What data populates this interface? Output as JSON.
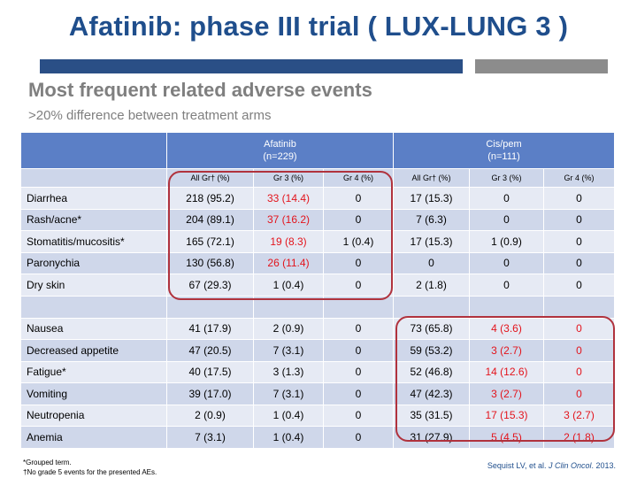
{
  "slide": {
    "title": "Afatinib: phase III trial ( LUX-LUNG 3 )",
    "subtitle": "Most frequent related adverse events",
    "subnote": ">20% difference between treatment arms"
  },
  "colors": {
    "title": "#1f4e8c",
    "header": "#5b7fc6",
    "row_light": "#e6eaf4",
    "row_dark": "#cfd7ea",
    "highlight_text": "#e3141c",
    "outline": "#b0323d"
  },
  "table": {
    "arms": [
      {
        "name": "Afatinib",
        "n": "(n=229)"
      },
      {
        "name": "Cis/pem",
        "n": "(n=111)"
      }
    ],
    "columns": [
      "All Gr† (%)",
      "Gr 3 (%)",
      "Gr 4 (%)",
      "All Gr† (%)",
      "Gr 3 (%)",
      "Gr 4 (%)"
    ],
    "group1": [
      {
        "name": "Diarrhea",
        "cells": [
          "218 (95.2)",
          "33 (14.4)",
          "0",
          "17 (15.3)",
          "0",
          "0"
        ],
        "red": [
          false,
          true,
          false,
          false,
          false,
          false
        ]
      },
      {
        "name": "Rash/acne*",
        "cells": [
          "204 (89.1)",
          "37 (16.2)",
          "0",
          "7 (6.3)",
          "0",
          "0"
        ],
        "red": [
          false,
          true,
          false,
          false,
          false,
          false
        ]
      },
      {
        "name": "Stomatitis/mucositis*",
        "cells": [
          "165 (72.1)",
          "19 (8.3)",
          "1 (0.4)",
          "17 (15.3)",
          "1 (0.9)",
          "0"
        ],
        "red": [
          false,
          true,
          false,
          false,
          false,
          false
        ]
      },
      {
        "name": "Paronychia",
        "cells": [
          "130 (56.8)",
          "26 (11.4)",
          "0",
          "0",
          "0",
          "0"
        ],
        "red": [
          false,
          true,
          false,
          false,
          false,
          false
        ]
      },
      {
        "name": "Dry skin",
        "cells": [
          "67 (29.3)",
          "1 (0.4)",
          "0",
          "2 (1.8)",
          "0",
          "0"
        ],
        "red": [
          false,
          false,
          false,
          false,
          false,
          false
        ]
      }
    ],
    "group2": [
      {
        "name": "Nausea",
        "cells": [
          "41 (17.9)",
          "2 (0.9)",
          "0",
          "73 (65.8)",
          "4 (3.6)",
          "0"
        ],
        "red": [
          false,
          false,
          false,
          false,
          true,
          true
        ]
      },
      {
        "name": "Decreased appetite",
        "cells": [
          "47 (20.5)",
          "7 (3.1)",
          "0",
          "59 (53.2)",
          "3 (2.7)",
          "0"
        ],
        "red": [
          false,
          false,
          false,
          false,
          true,
          true
        ]
      },
      {
        "name": "Fatigue*",
        "cells": [
          "40 (17.5)",
          "3 (1.3)",
          "0",
          "52 (46.8)",
          "14 (12.6)",
          "0"
        ],
        "red": [
          false,
          false,
          false,
          false,
          true,
          true
        ]
      },
      {
        "name": "Vomiting",
        "cells": [
          "39 (17.0)",
          "7 (3.1)",
          "0",
          "47 (42.3)",
          "3 (2.7)",
          "0"
        ],
        "red": [
          false,
          false,
          false,
          false,
          true,
          true
        ]
      },
      {
        "name": "Neutropenia",
        "cells": [
          "2 (0.9)",
          "1 (0.4)",
          "0",
          "35 (31.5)",
          "17 (15.3)",
          "3 (2.7)"
        ],
        "red": [
          false,
          false,
          false,
          false,
          true,
          true
        ]
      },
      {
        "name": "Anemia",
        "cells": [
          "7 (3.1)",
          "1 (0.4)",
          "0",
          "31 (27.9)",
          "5 (4.5)",
          "2 (1.8)"
        ],
        "red": [
          false,
          false,
          false,
          false,
          true,
          true
        ]
      }
    ]
  },
  "footnotes": {
    "grouped": "*Grouped term.",
    "grade5": "†No grade 5 events for the presented AEs.",
    "citation_pre": "Sequist LV, et al. ",
    "citation_journal": "J Clin Oncol",
    "citation_post": ". 2013."
  }
}
